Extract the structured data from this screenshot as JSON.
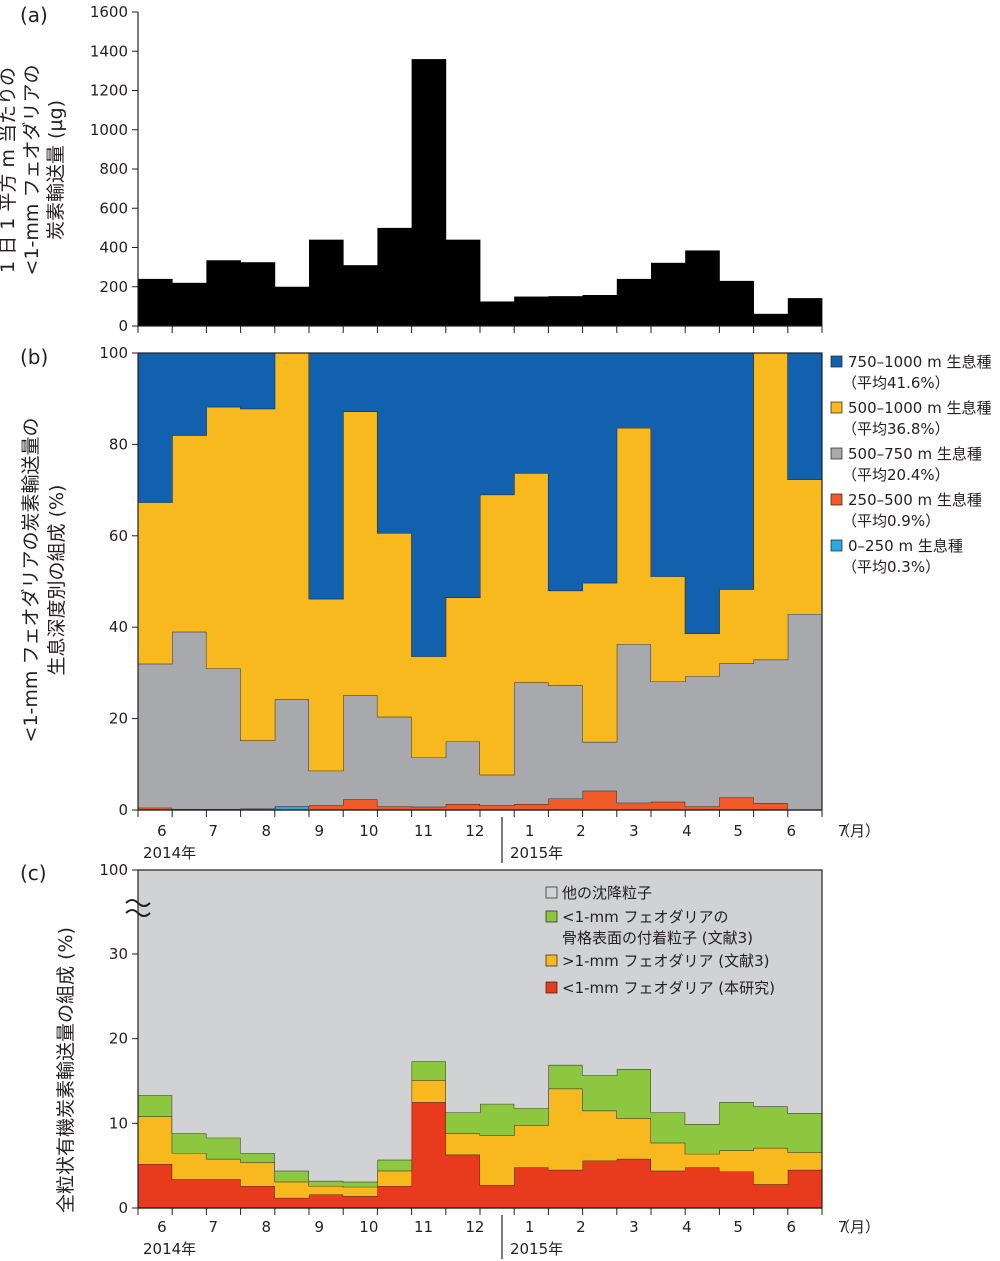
{
  "chart_data": [
    {
      "type": "bar",
      "panel_label": "(a)",
      "ylabel_lines": [
        "1 日 1 平方 m 当たりの",
        "<1-mm フェオダリアの",
        "炭素輸送量 (µg)"
      ],
      "ylim": [
        0,
        1600
      ],
      "yticks": [
        "0",
        "200",
        "400",
        "600",
        "800",
        "1000",
        "1200",
        "1400",
        "1600"
      ],
      "values": [
        240,
        220,
        335,
        325,
        200,
        440,
        310,
        500,
        1360,
        440,
        125,
        150,
        152,
        158,
        240,
        322,
        385,
        230,
        62,
        142
      ],
      "color": "#000000"
    },
    {
      "type": "area",
      "stacked": true,
      "panel_label": "(b)",
      "ylabel_lines": [
        "<1-mm フェオダリアの炭素輸送量の",
        "生息深度別の組成 (%)"
      ],
      "ylim": [
        0,
        100
      ],
      "yticks": [
        "0",
        "20",
        "40",
        "60",
        "80",
        "100"
      ],
      "series": [
        {
          "name": "0–250 m 生息種",
          "name2": "（平均0.3%）",
          "color": "#27a9e1",
          "values": [
            0,
            0,
            0,
            0,
            0.8,
            0,
            0,
            0,
            0,
            0,
            0,
            0,
            0,
            0,
            0,
            0,
            0,
            0,
            0,
            0
          ]
        },
        {
          "name": "250–500 m 生息種",
          "name2": "（平均0.9%）",
          "color": "#f05a28",
          "values": [
            0.5,
            0.2,
            0.2,
            0.3,
            0,
            1.0,
            2.3,
            0.8,
            0.7,
            1.3,
            1.0,
            1.3,
            2.5,
            4.2,
            1.6,
            1.8,
            0.8,
            2.8,
            1.5,
            0.1
          ]
        },
        {
          "name": "500–750 m 生息種",
          "name2": "（平均20.4%）",
          "color": "#a7a9ac",
          "values": [
            31.5,
            38.8,
            30.8,
            14.9,
            23.4,
            7.6,
            22.8,
            19.6,
            10.8,
            13.7,
            6.7,
            26.6,
            24.8,
            10.7,
            34.7,
            26.3,
            28.5,
            29.3,
            31.4,
            42.8
          ]
        },
        {
          "name": "500–1000 m 生息種",
          "name2": "（平均36.8%）",
          "color": "#f7b91e",
          "values": [
            35.3,
            43.0,
            57.2,
            72.6,
            75.8,
            37.6,
            62.1,
            40.2,
            22.1,
            31.5,
            61.3,
            45.8,
            20.7,
            34.8,
            47.3,
            23.0,
            9.3,
            16.2,
            67.1,
            29.4
          ]
        },
        {
          "name": "750–1000 m 生息種",
          "name2": "（平均41.6%）",
          "color": "#1161ae",
          "values": [
            32.7,
            18.0,
            11.8,
            12.2,
            0,
            53.8,
            12.8,
            39.4,
            66.4,
            53.5,
            31.0,
            26.3,
            52.0,
            50.3,
            16.4,
            48.9,
            61.4,
            51.7,
            0,
            27.7
          ]
        }
      ],
      "legend_placement": "right"
    },
    {
      "type": "area",
      "stacked": true,
      "panel_label": "(c)",
      "ylabel_lines": [
        "全粒状有機炭素輸送量の組成 (%)"
      ],
      "ylim": [
        0,
        100
      ],
      "axis_break": true,
      "yticks": [
        "0",
        "10",
        "20",
        "30",
        "100"
      ],
      "series": [
        {
          "name": "<1-mm フェオダリア (本研究)",
          "color": "#e83a1c",
          "values": [
            5.2,
            3.4,
            3.4,
            2.6,
            1.2,
            1.6,
            1.4,
            2.6,
            12.5,
            6.3,
            2.7,
            4.8,
            4.5,
            5.6,
            5.8,
            4.4,
            4.8,
            4.3,
            2.8,
            4.5
          ]
        },
        {
          "name": ">1-mm フェオダリア (文献3)",
          "color": "#f7b91e",
          "values": [
            5.6,
            3.1,
            2.4,
            2.8,
            1.9,
            1.0,
            1.1,
            1.8,
            2.6,
            2.5,
            5.9,
            5.0,
            9.6,
            5.9,
            4.8,
            3.3,
            1.6,
            2.5,
            4.3,
            2.1
          ]
        },
        {
          "name2": "骨格表面の付着粒子 (文献3)",
          "name": "<1-mm フェオダリアの",
          "color": "#8dc63f",
          "values": [
            2.5,
            2.3,
            2.5,
            1.1,
            1.3,
            0.6,
            0.6,
            1.3,
            2.2,
            2.5,
            3.7,
            2.0,
            2.8,
            4.2,
            5.8,
            3.6,
            3.5,
            5.7,
            4.9,
            4.6
          ]
        },
        {
          "name": "他の沈降粒子",
          "color": "#d1d2d4",
          "fill_rest": true
        }
      ],
      "legend_placement": "top-right"
    }
  ],
  "x_axis": {
    "month_labels": [
      "6",
      "7",
      "8",
      "9",
      "10",
      "11",
      "12",
      "1",
      "2",
      "3",
      "4",
      "5",
      "6",
      "7"
    ],
    "month_unit": "（月）",
    "year_labels": [
      "2014年",
      "2015年"
    ]
  }
}
